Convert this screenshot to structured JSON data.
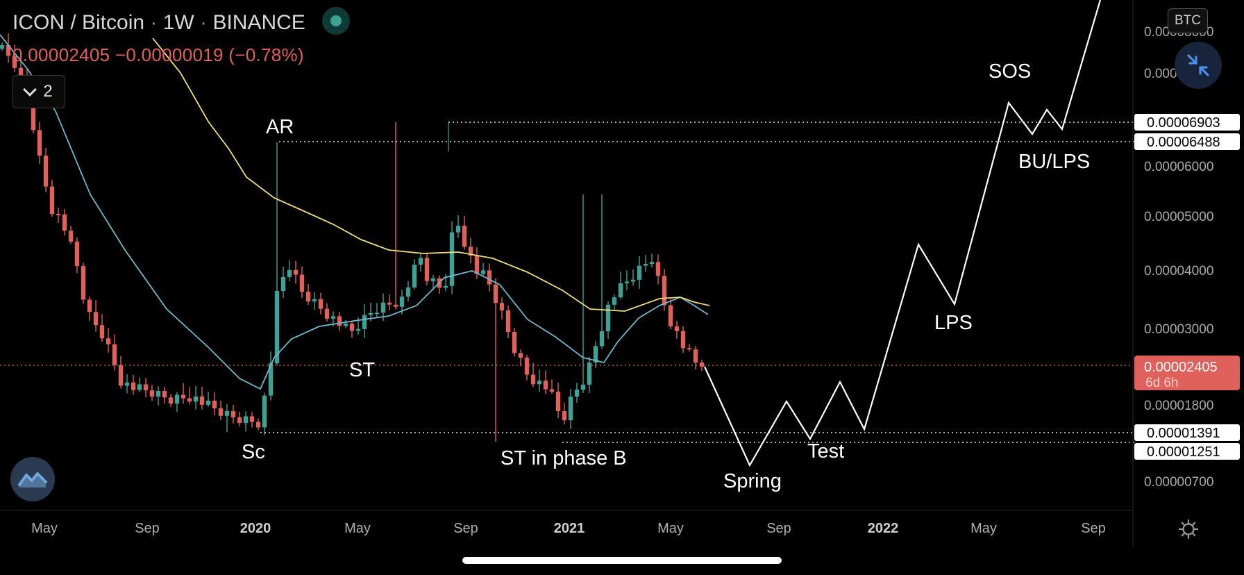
{
  "header": {
    "symbol": "ICON / Bitcoin",
    "interval": "1W",
    "exchange": "BINANCE",
    "separator": "·",
    "price_line": "0.00002405  −0.00000019 (−0.78%)"
  },
  "indicators_button": {
    "count": "2"
  },
  "currency_badge": "BTC",
  "icons": {
    "status": "status-dot-icon",
    "indicators": "chevron-down-icon",
    "collapse": "collapse-arrows-icon",
    "logo": "tradingview-logo-icon",
    "settings": "gear-icon"
  },
  "colors": {
    "background": "#000000",
    "up_candle": "#3fa196",
    "down_candle": "#e0605b",
    "ma_fast": "#6fb8cf",
    "ma_slow": "#f1df7a",
    "projection": "#ffffff",
    "price_tag": "#e0605b",
    "collapse_icon": "#4b8fe8"
  },
  "chart_data": {
    "type": "candlestick",
    "scale": "log",
    "x_axis_labels": [
      "May",
      "Sep",
      "2020",
      "May",
      "Sep",
      "2021",
      "May",
      "Sep",
      "2022",
      "May",
      "Sep"
    ],
    "bold_x_labels": [
      "2020",
      "2021",
      "2022"
    ],
    "y_axis_ticks": [
      "0.00008000",
      "0.00007000",
      "0.00006000",
      "0.00005000",
      "0.00004000",
      "0.00003000",
      "0.00001800",
      "0.00000700"
    ],
    "price_labels": [
      {
        "text": "0.00006903",
        "value": 6.903e-05
      },
      {
        "text": "0.00006488",
        "value": 6.488e-05
      },
      {
        "text": "0.00001391",
        "value": 1.391e-05
      },
      {
        "text": "0.00001251",
        "value": 1.251e-05
      }
    ],
    "current_price": {
      "text": "0.00002405",
      "countdown": "6d 6h",
      "value": 2.405e-05
    },
    "key_levels": [
      6.903e-05,
      6.488e-05,
      1.391e-05,
      1.251e-05
    ],
    "annotations": [
      "AR",
      "ST",
      "Sc",
      "ST in phase B",
      "Spring",
      "Test",
      "LPS",
      "SOS",
      "BU/LPS"
    ],
    "series": [
      {
        "role": "moving-average-fast",
        "color": "#6fb8cf"
      },
      {
        "role": "moving-average-slow",
        "color": "#f1df7a"
      },
      {
        "role": "projection-path",
        "color": "#ffffff"
      }
    ],
    "grid": false
  }
}
